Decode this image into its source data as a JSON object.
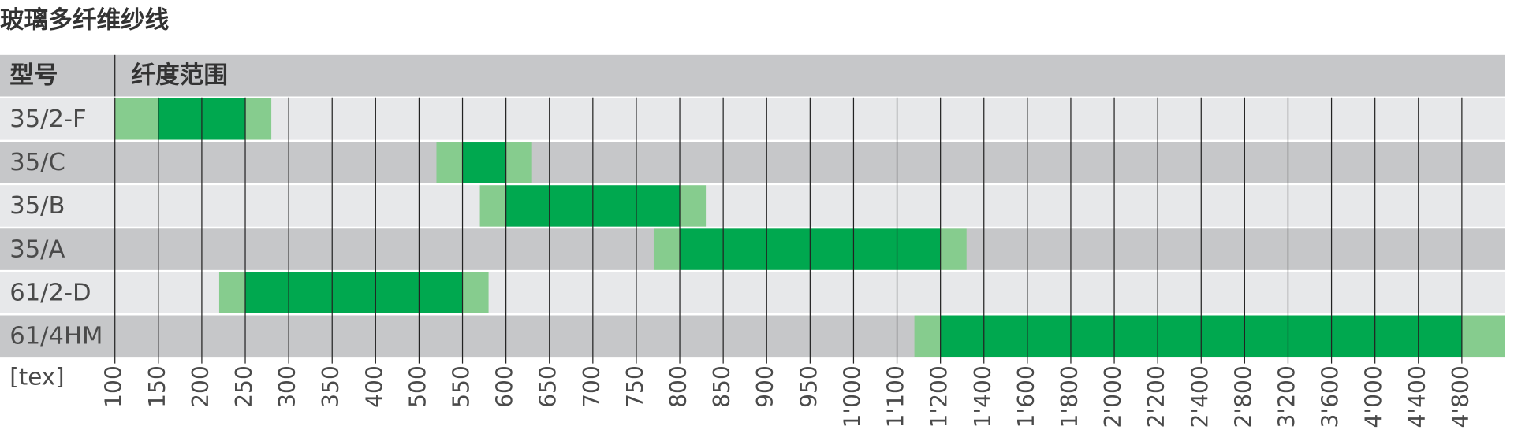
{
  "chart_data": {
    "type": "range",
    "title": "玻璃多纤维纱线",
    "header": [
      "型号",
      "纤度范围"
    ],
    "x_label": "[tex]",
    "categories": [
      "35/2-F",
      "35/C",
      "35/B",
      "35/A",
      "61/2-D",
      "61/4HM"
    ],
    "outer_low": [
      100,
      520,
      570,
      770,
      220,
      1140
    ],
    "core_low": [
      150,
      550,
      600,
      800,
      250,
      1200
    ],
    "core_high": [
      250,
      600,
      800,
      1200,
      550,
      4800
    ],
    "outer_high": [
      280,
      630,
      830,
      1320,
      580,
      5200
    ],
    "core_color": "#00a84f",
    "outer_color": "#86cc8e",
    "xlim": [
      100,
      5200
    ],
    "xticks": [
      100,
      150,
      200,
      250,
      300,
      350,
      400,
      500,
      550,
      600,
      650,
      700,
      750,
      800,
      850,
      900,
      950,
      {
        "value": 1000,
        "label": "1'000"
      },
      {
        "value": 1100,
        "label": "1'100"
      },
      {
        "value": 1200,
        "label": "1'200"
      },
      {
        "value": 1400,
        "label": "1'400"
      },
      {
        "value": 1600,
        "label": "1'600"
      },
      {
        "value": 1800,
        "label": "1'800"
      },
      {
        "value": 2000,
        "label": "2'000"
      },
      {
        "value": 2200,
        "label": "2'200"
      },
      {
        "value": 2400,
        "label": "2'400"
      },
      {
        "value": 2800,
        "label": "2'800"
      },
      {
        "value": 3200,
        "label": "3'200"
      },
      {
        "value": 3600,
        "label": "3'600"
      },
      {
        "value": 4000,
        "label": "4'000"
      },
      {
        "value": 4400,
        "label": "4'400"
      },
      {
        "value": 4800,
        "label": "4'800"
      }
    ],
    "grid": true
  }
}
